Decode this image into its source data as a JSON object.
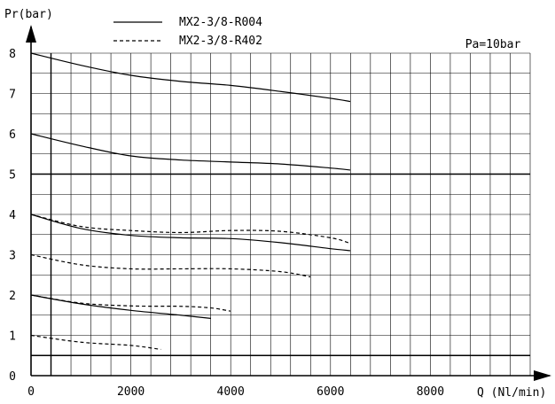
{
  "chart_data": {
    "type": "line",
    "ylabel": "Pr(bar)",
    "xlabel": "Q (Nl/min)",
    "note": "Pa=10bar",
    "xlim": [
      0,
      10000
    ],
    "ylim": [
      0,
      8
    ],
    "xticks": [
      0,
      2000,
      4000,
      6000,
      8000
    ],
    "yticks": [
      0,
      1,
      2,
      3,
      4,
      5,
      6,
      7,
      8
    ],
    "grid": true,
    "legend": {
      "placement": "top",
      "entries": [
        {
          "label": "MX2-3/8-R004",
          "style": "solid"
        },
        {
          "label": "MX2-3/8-R402",
          "style": "dashed"
        }
      ]
    },
    "series": [
      {
        "style": "solid",
        "points": [
          [
            0,
            8.0
          ],
          [
            1000,
            7.7
          ],
          [
            2000,
            7.45
          ],
          [
            3000,
            7.3
          ],
          [
            4000,
            7.2
          ],
          [
            5000,
            7.05
          ],
          [
            6000,
            6.88
          ],
          [
            6400,
            6.8
          ]
        ]
      },
      {
        "style": "solid",
        "points": [
          [
            0,
            6.0
          ],
          [
            1000,
            5.7
          ],
          [
            2000,
            5.45
          ],
          [
            3000,
            5.35
          ],
          [
            4000,
            5.3
          ],
          [
            5000,
            5.25
          ],
          [
            6000,
            5.15
          ],
          [
            6400,
            5.1
          ]
        ]
      },
      {
        "style": "solid",
        "points": [
          [
            0,
            4.0
          ],
          [
            1000,
            3.65
          ],
          [
            2000,
            3.48
          ],
          [
            3000,
            3.42
          ],
          [
            4000,
            3.4
          ],
          [
            5000,
            3.3
          ],
          [
            6000,
            3.15
          ],
          [
            6400,
            3.1
          ]
        ]
      },
      {
        "style": "solid",
        "points": [
          [
            0,
            2.0
          ],
          [
            1000,
            1.78
          ],
          [
            2000,
            1.62
          ],
          [
            3000,
            1.5
          ],
          [
            3600,
            1.42
          ]
        ]
      },
      {
        "style": "dashed",
        "points": [
          [
            0,
            4.0
          ],
          [
            1000,
            3.7
          ],
          [
            2000,
            3.6
          ],
          [
            3000,
            3.55
          ],
          [
            4000,
            3.6
          ],
          [
            5000,
            3.58
          ],
          [
            6000,
            3.42
          ],
          [
            6400,
            3.28
          ]
        ]
      },
      {
        "style": "dashed",
        "points": [
          [
            0,
            3.0
          ],
          [
            1000,
            2.75
          ],
          [
            2000,
            2.65
          ],
          [
            3000,
            2.65
          ],
          [
            4000,
            2.65
          ],
          [
            5000,
            2.58
          ],
          [
            5600,
            2.45
          ]
        ]
      },
      {
        "style": "dashed",
        "points": [
          [
            0,
            2.0
          ],
          [
            1000,
            1.8
          ],
          [
            2000,
            1.73
          ],
          [
            3000,
            1.72
          ],
          [
            3600,
            1.68
          ],
          [
            4000,
            1.6
          ]
        ]
      },
      {
        "style": "dashed",
        "points": [
          [
            0,
            1.0
          ],
          [
            1000,
            0.83
          ],
          [
            2000,
            0.75
          ],
          [
            2600,
            0.65
          ]
        ]
      }
    ],
    "reference_lines": {
      "horizontal": [
        5,
        0.5
      ],
      "vertical": [
        400
      ]
    }
  }
}
